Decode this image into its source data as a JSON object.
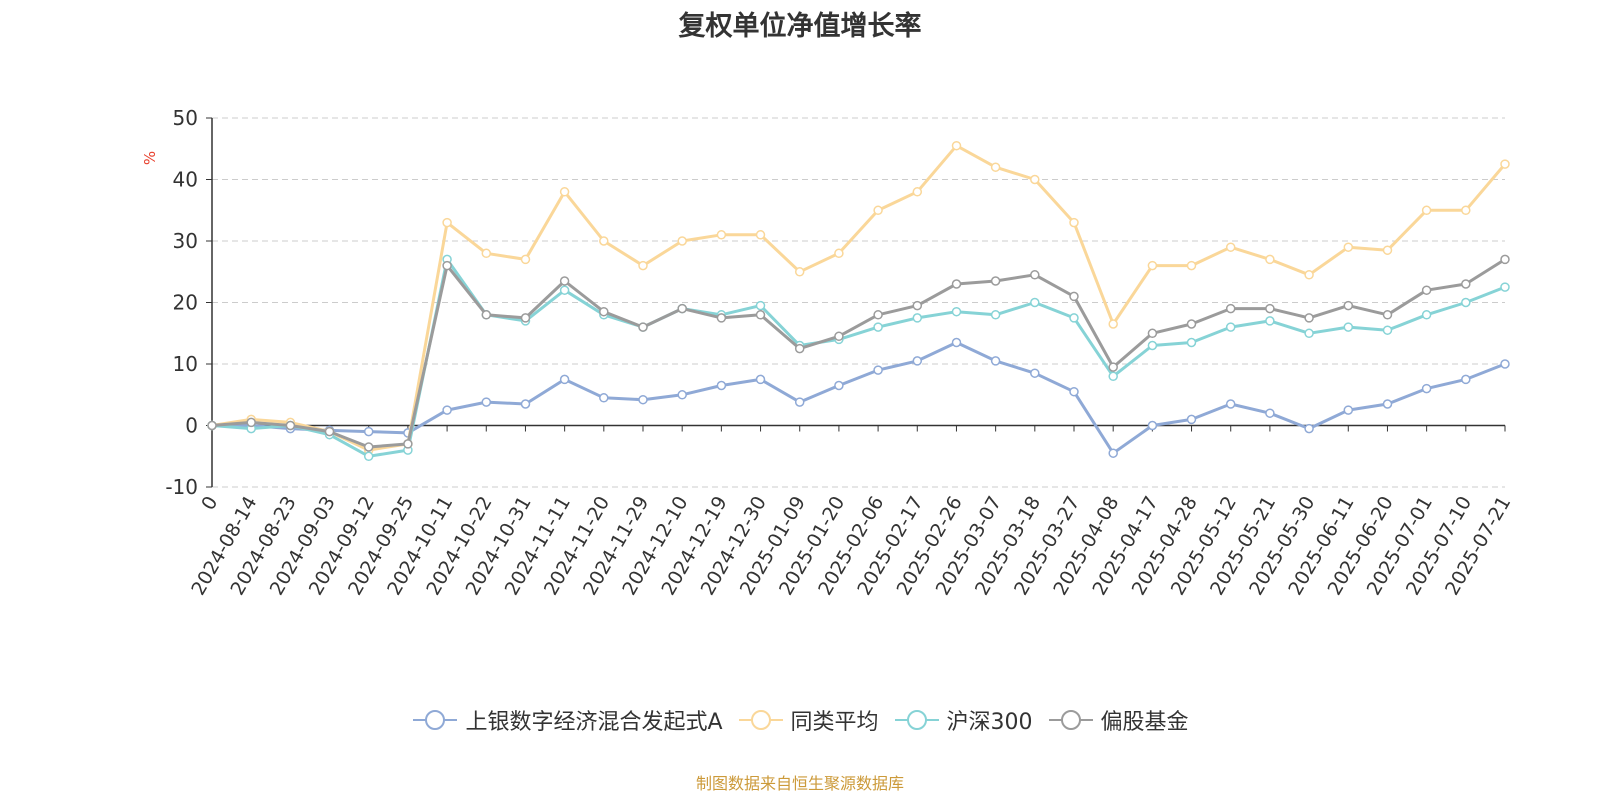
{
  "colors": {
    "fund": "#8fa9d6",
    "peer_avg": "#fad799",
    "hs300": "#86d3d6",
    "equity_fund": "#9b9b9b",
    "axis": "#333333",
    "grid": "#cccccc",
    "unit_text": "#e8412e",
    "source_text": "#cc9a3a"
  },
  "source_note": "制图数据来自恒生聚源数据库",
  "chart_data": {
    "type": "line",
    "title": "复权单位净值增长率",
    "ylabel": "%",
    "xlabel": "",
    "ylim": [
      -10,
      50
    ],
    "yticks": [
      -10,
      0,
      10,
      20,
      30,
      40,
      50
    ],
    "grid": true,
    "legend_position": "bottom",
    "x_tick_labels": [
      "0",
      "2024-08-14",
      "2024-08-23",
      "2024-09-03",
      "2024-09-12",
      "2024-09-25",
      "2024-10-11",
      "2024-10-22",
      "2024-10-31",
      "2024-11-11",
      "2024-11-20",
      "2024-11-29",
      "2024-12-10",
      "2024-12-19",
      "2024-12-30",
      "2025-01-09",
      "2025-01-20",
      "2025-02-06",
      "2025-02-17",
      "2025-02-26",
      "2025-03-07",
      "2025-03-18",
      "2025-03-27",
      "2025-04-08",
      "2025-04-17",
      "2025-04-28",
      "2025-05-12",
      "2025-05-21",
      "2025-05-30",
      "2025-06-11",
      "2025-06-20",
      "2025-07-01",
      "2025-07-10",
      "2025-07-21"
    ],
    "series": [
      {
        "name": "上银数字经济混合发起式A",
        "color_key": "fund",
        "values": [
          0,
          0,
          -0.5,
          -0.8,
          -1,
          -1.2,
          2.5,
          3.8,
          3.5,
          7.5,
          4.5,
          4.2,
          5,
          6.5,
          7.5,
          3.8,
          6.5,
          9,
          10.5,
          13.5,
          10.5,
          8.5,
          5.5,
          -4.5,
          0,
          1,
          3.5,
          2,
          -0.5,
          2.5,
          3.5,
          6,
          7.5,
          10
        ]
      },
      {
        "name": "同类平均",
        "color_key": "peer_avg",
        "values": [
          0,
          1,
          0.5,
          -1,
          -4,
          -3,
          33,
          28,
          27,
          38,
          30,
          26,
          30,
          31,
          31,
          25,
          28,
          35,
          38,
          45.5,
          42,
          40,
          33,
          16.5,
          26,
          26,
          29,
          27,
          24.5,
          29,
          28.5,
          35,
          35,
          42.5
        ]
      },
      {
        "name": "沪深300",
        "color_key": "hs300",
        "values": [
          0,
          -0.5,
          0,
          -1.5,
          -5,
          -4,
          27,
          18,
          17,
          22,
          18,
          16,
          19,
          18,
          19.5,
          13,
          14,
          16,
          17.5,
          18.5,
          18,
          20,
          17.5,
          8,
          13,
          13.5,
          16,
          17,
          15,
          16,
          15.5,
          18,
          20,
          22.5
        ]
      },
      {
        "name": "偏股基金",
        "color_key": "equity_fund",
        "values": [
          0,
          0.5,
          0,
          -1,
          -3.5,
          -3,
          26,
          18,
          17.5,
          23.5,
          18.5,
          16,
          19,
          17.5,
          18,
          12.5,
          14.5,
          18,
          19.5,
          23,
          23.5,
          24.5,
          21,
          9.5,
          15,
          16.5,
          19,
          19,
          17.5,
          19.5,
          18,
          22,
          23,
          27
        ]
      }
    ]
  }
}
